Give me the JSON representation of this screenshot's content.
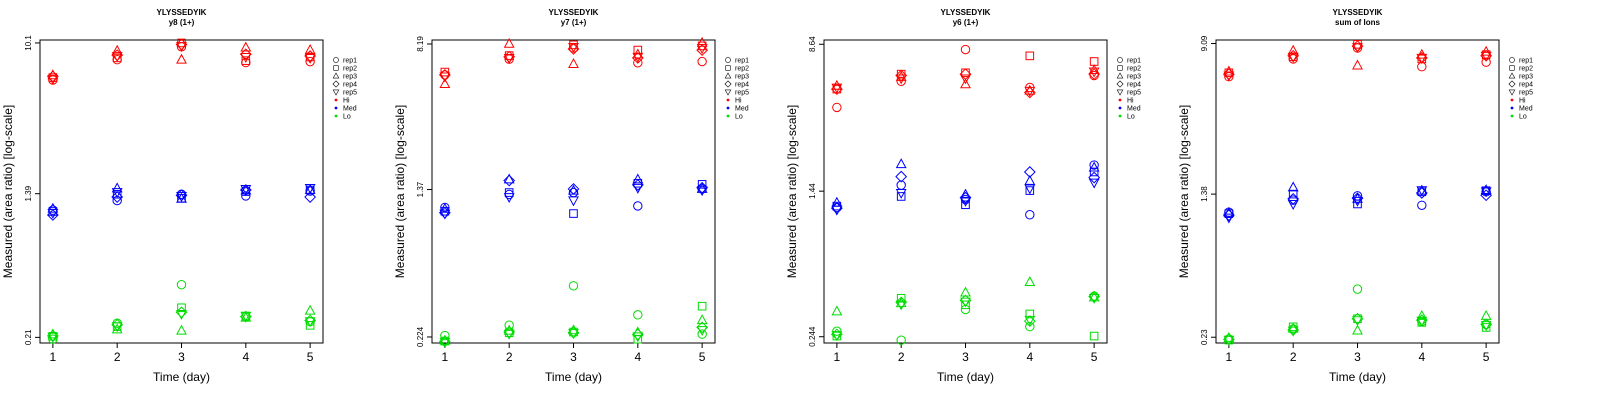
{
  "chart_data": [
    {
      "type": "scatter",
      "title": "YLYSSEDYIK",
      "subtitle": "y8 (1+)",
      "xlabel": "Time (day)",
      "ylabel": "Measured (area ratio) [log-scale]",
      "y_scale": "log",
      "x_ticks": [
        "1",
        "2",
        "3",
        "4",
        "5"
      ],
      "y_ticks": [
        {
          "value": 0.21,
          "label": "0.21"
        },
        {
          "value": 1.39,
          "label": "1.39"
        },
        {
          "value": 10.1,
          "label": "10.1"
        }
      ],
      "xlim": [
        0.8,
        5.2
      ],
      "ylim": [
        0.195,
        10.5
      ],
      "series": [
        {
          "name": "rep1",
          "marker": "circle",
          "Hi": [
            6.2,
            8.1,
            9.6,
            7.8,
            7.9
          ],
          "Med": [
            1.12,
            1.27,
            1.38,
            1.35,
            1.44
          ],
          "Lo": [
            0.205,
            0.253,
            0.42,
            0.275,
            0.258
          ]
        },
        {
          "name": "rep2",
          "marker": "square",
          "Hi": [
            6.4,
            8.3,
            10.1,
            8.0,
            8.4
          ],
          "Med": [
            1.1,
            1.38,
            1.31,
            1.43,
            1.46
          ],
          "Lo": [
            0.213,
            0.242,
            0.31,
            0.278,
            0.246
          ]
        },
        {
          "name": "rep3",
          "marker": "triangle",
          "Hi": [
            6.6,
            9.1,
            8.1,
            9.5,
            9.2
          ],
          "Med": [
            1.14,
            1.49,
            1.3,
            1.45,
            1.46
          ],
          "Lo": [
            0.218,
            0.233,
            0.229,
            0.272,
            0.298
          ]
        },
        {
          "name": "rep4",
          "marker": "diamond",
          "Hi": [
            6.5,
            8.6,
            9.9,
            8.7,
            8.5
          ],
          "Med": [
            1.05,
            1.33,
            1.36,
            1.46,
            1.33
          ],
          "Lo": [
            0.214,
            0.248,
            0.292,
            0.276,
            0.262
          ]
        },
        {
          "name": "rep5",
          "marker": "triangle-down",
          "Hi": [
            6.3,
            8.5,
            9.7,
            8.4,
            8.3
          ],
          "Med": [
            1.08,
            1.42,
            1.35,
            1.48,
            1.5
          ],
          "Lo": [
            0.212,
            0.243,
            0.286,
            0.279,
            0.26
          ]
        }
      ]
    },
    {
      "type": "scatter",
      "title": "YLYSSEDYIK",
      "subtitle": "y7 (1+)",
      "xlabel": "Time (day)",
      "ylabel": "Measured (area ratio) [log-scale]",
      "y_scale": "log",
      "x_ticks": [
        "1",
        "2",
        "3",
        "4",
        "5"
      ],
      "y_ticks": [
        {
          "value": 0.224,
          "label": "0.224"
        },
        {
          "value": 1.37,
          "label": "1.37"
        },
        {
          "value": 8.19,
          "label": "8.19"
        }
      ],
      "xlim": [
        0.8,
        5.2
      ],
      "ylim": [
        0.208,
        8.6
      ],
      "series": [
        {
          "name": "rep1",
          "marker": "circle",
          "Hi": [
            5.6,
            6.8,
            7.8,
            6.5,
            6.6
          ],
          "Med": [
            1.1,
            1.29,
            1.32,
            1.12,
            1.38
          ],
          "Lo": [
            0.228,
            0.259,
            0.42,
            0.294,
            0.232
          ]
        },
        {
          "name": "rep2",
          "marker": "square",
          "Hi": [
            5.8,
            7.1,
            8.1,
            7.6,
            8.0
          ],
          "Med": [
            1.05,
            1.32,
            1.02,
            1.48,
            1.46
          ],
          "Lo": [
            0.213,
            0.236,
            0.238,
            0.218,
            0.327
          ]
        },
        {
          "name": "rep3",
          "marker": "triangle",
          "Hi": [
            5.0,
            8.2,
            6.4,
            7.2,
            8.3
          ],
          "Med": [
            1.08,
            1.55,
            1.35,
            1.55,
            1.38
          ],
          "Lo": [
            0.214,
            0.242,
            0.243,
            0.237,
            0.275
          ]
        },
        {
          "name": "rep4",
          "marker": "diamond",
          "Hi": [
            5.6,
            7.0,
            7.7,
            6.9,
            7.6
          ],
          "Med": [
            1.03,
            1.53,
            1.38,
            1.45,
            1.4
          ],
          "Lo": [
            0.212,
            0.238,
            0.236,
            0.231,
            0.252
          ]
        },
        {
          "name": "rep5",
          "marker": "triangle-down",
          "Hi": [
            5.5,
            6.9,
            7.9,
            7.0,
            7.8
          ],
          "Med": [
            1.02,
            1.25,
            1.2,
            1.4,
            1.36
          ],
          "Lo": [
            0.211,
            0.233,
            0.235,
            0.226,
            0.244
          ]
        }
      ]
    },
    {
      "type": "scatter",
      "title": "YLYSSEDYIK",
      "subtitle": "y6 (1+)",
      "xlabel": "Time (day)",
      "ylabel": "Measured (area ratio) [log-scale]",
      "y_scale": "log",
      "x_ticks": [
        "1",
        "2",
        "3",
        "4",
        "5"
      ],
      "y_ticks": [
        {
          "value": 0.244,
          "label": "0.244"
        },
        {
          "value": 1.44,
          "label": "1.44"
        },
        {
          "value": 8.64,
          "label": "8.64"
        }
      ],
      "xlim": [
        0.8,
        5.2
      ],
      "ylim": [
        0.226,
        9.1
      ],
      "series": [
        {
          "name": "rep1",
          "marker": "circle",
          "Hi": [
            4.0,
            5.5,
            8.1,
            5.1,
            5.9
          ],
          "Med": [
            1.18,
            1.55,
            1.3,
            1.08,
            1.98
          ],
          "Lo": [
            0.261,
            0.234,
            0.34,
            0.276,
            0.4
          ]
        },
        {
          "name": "rep2",
          "marker": "square",
          "Hi": [
            5.0,
            6.0,
            6.1,
            7.5,
            7.0
          ],
          "Med": [
            1.2,
            1.35,
            1.22,
            1.45,
            1.82
          ],
          "Lo": [
            0.246,
            0.39,
            0.36,
            0.322,
            0.246
          ]
        },
        {
          "name": "rep3",
          "marker": "triangle",
          "Hi": [
            5.2,
            5.8,
            5.3,
            4.9,
            6.3
          ],
          "Med": [
            1.25,
            2.0,
            1.38,
            1.63,
            1.92
          ],
          "Lo": [
            0.332,
            0.367,
            0.418,
            0.475,
            0.394
          ]
        },
        {
          "name": "rep4",
          "marker": "diamond",
          "Hi": [
            5.0,
            5.9,
            6.0,
            4.8,
            6.0
          ],
          "Med": [
            1.17,
            1.72,
            1.33,
            1.82,
            1.7
          ],
          "Lo": [
            0.251,
            0.371,
            0.38,
            0.295,
            0.398
          ]
        },
        {
          "name": "rep5",
          "marker": "triangle-down",
          "Hi": [
            5.1,
            5.7,
            5.7,
            4.9,
            6.2
          ],
          "Med": [
            1.15,
            1.41,
            1.28,
            1.49,
            1.6
          ],
          "Lo": [
            0.249,
            0.362,
            0.375,
            0.3,
            0.392
          ]
        }
      ]
    },
    {
      "type": "scatter",
      "title": "YLYSSEDYIK",
      "subtitle": "sum of Ions",
      "xlabel": "Time (day)",
      "ylabel": "Measured (area ratio) [log-scale]",
      "y_scale": "log",
      "x_ticks": [
        "1",
        "2",
        "3",
        "4",
        "5"
      ],
      "y_ticks": [
        {
          "value": 0.23,
          "label": "0.23"
        },
        {
          "value": 1.38,
          "label": "1.38"
        },
        {
          "value": 9.09,
          "label": "9.09"
        }
      ],
      "xlim": [
        0.8,
        5.2
      ],
      "ylim": [
        0.214,
        9.5
      ],
      "series": [
        {
          "name": "rep1",
          "marker": "circle",
          "Hi": [
            6.0,
            7.5,
            8.6,
            6.8,
            7.2
          ],
          "Med": [
            1.1,
            1.28,
            1.35,
            1.2,
            1.42
          ],
          "Lo": [
            0.225,
            0.255,
            0.42,
            0.28,
            0.27
          ]
        },
        {
          "name": "rep2",
          "marker": "square",
          "Hi": [
            6.3,
            7.7,
            9.0,
            7.5,
            7.9
          ],
          "Med": [
            1.08,
            1.38,
            1.22,
            1.42,
            1.44
          ],
          "Lo": [
            0.222,
            0.262,
            0.29,
            0.277,
            0.26
          ]
        },
        {
          "name": "rep3",
          "marker": "triangle",
          "Hi": [
            6.4,
            8.3,
            6.9,
            7.9,
            8.2
          ],
          "Med": [
            1.09,
            1.5,
            1.3,
            1.44,
            1.45
          ],
          "Lo": [
            0.228,
            0.256,
            0.25,
            0.3,
            0.3
          ]
        },
        {
          "name": "rep4",
          "marker": "diamond",
          "Hi": [
            6.2,
            7.8,
            8.8,
            7.6,
            7.8
          ],
          "Med": [
            1.06,
            1.3,
            1.31,
            1.4,
            1.36
          ],
          "Lo": [
            0.224,
            0.252,
            0.29,
            0.285,
            0.27
          ]
        },
        {
          "name": "rep5",
          "marker": "triangle-down",
          "Hi": [
            6.1,
            7.7,
            8.7,
            7.6,
            7.8
          ],
          "Med": [
            1.03,
            1.22,
            1.27,
            1.45,
            1.43
          ],
          "Lo": [
            0.223,
            0.25,
            0.285,
            0.283,
            0.268
          ]
        }
      ]
    }
  ],
  "legend": {
    "placement": "right",
    "items": [
      {
        "label": "rep1",
        "marker": "circle"
      },
      {
        "label": "rep2",
        "marker": "square"
      },
      {
        "label": "rep3",
        "marker": "triangle"
      },
      {
        "label": "rep4",
        "marker": "diamond"
      },
      {
        "label": "rep5",
        "marker": "triangle-down"
      },
      {
        "label": "Hi",
        "marker": "dot",
        "color": "#ff0000"
      },
      {
        "label": "Med",
        "marker": "dot",
        "color": "#0000ff"
      },
      {
        "label": "Lo",
        "marker": "dot",
        "color": "#00dd00"
      }
    ]
  },
  "colors": {
    "Hi": "#ff0000",
    "Med": "#0000ff",
    "Lo": "#00dd00"
  }
}
